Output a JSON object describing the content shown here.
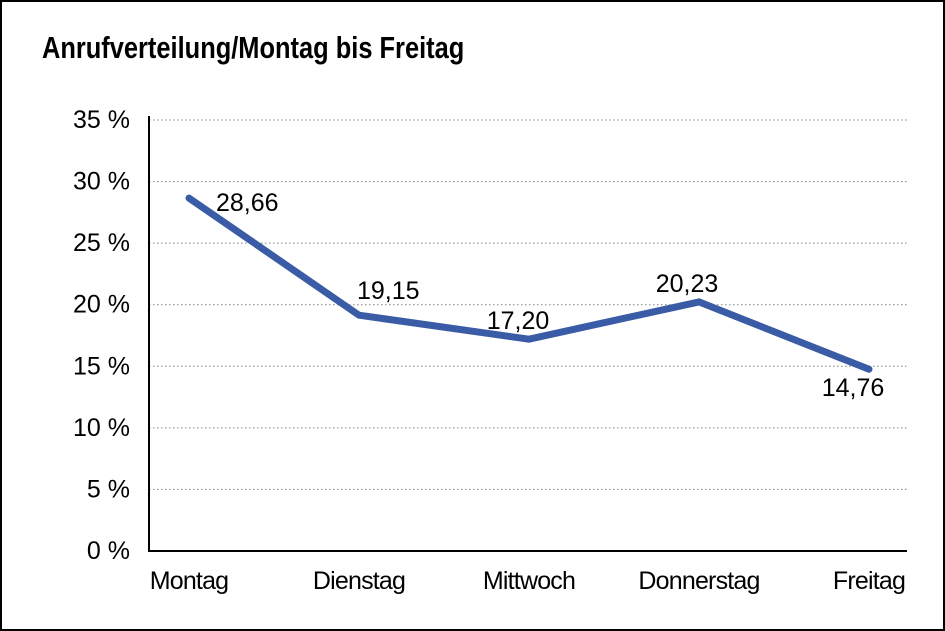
{
  "chart_data": {
    "type": "line",
    "title": "Anrufverteilung/Montag bis Freitag",
    "categories": [
      "Montag",
      "Dienstag",
      "Mittwoch",
      "Donnerstag",
      "Freitag"
    ],
    "values": [
      28.66,
      19.15,
      17.2,
      20.23,
      14.76
    ],
    "point_labels": [
      "28,66",
      "19,15",
      "17,20",
      "20,23",
      "14,76"
    ],
    "y_tick_values": [
      35,
      30,
      25,
      20,
      15,
      10,
      5,
      0
    ],
    "y_tick_labels": [
      "35 %",
      "30 %",
      "25 %",
      "20 %",
      "15 %",
      "10 %",
      "5 %",
      "0 %"
    ],
    "ylim": [
      0,
      35
    ],
    "xlabel": "",
    "ylabel": "",
    "grid": "horizontal-dotted",
    "legend_position": "none",
    "line_color": "#3A5BA5",
    "grid_color": "#808080",
    "axis_color": "#000000",
    "text_color": "#000000",
    "decimal_separator": ","
  }
}
